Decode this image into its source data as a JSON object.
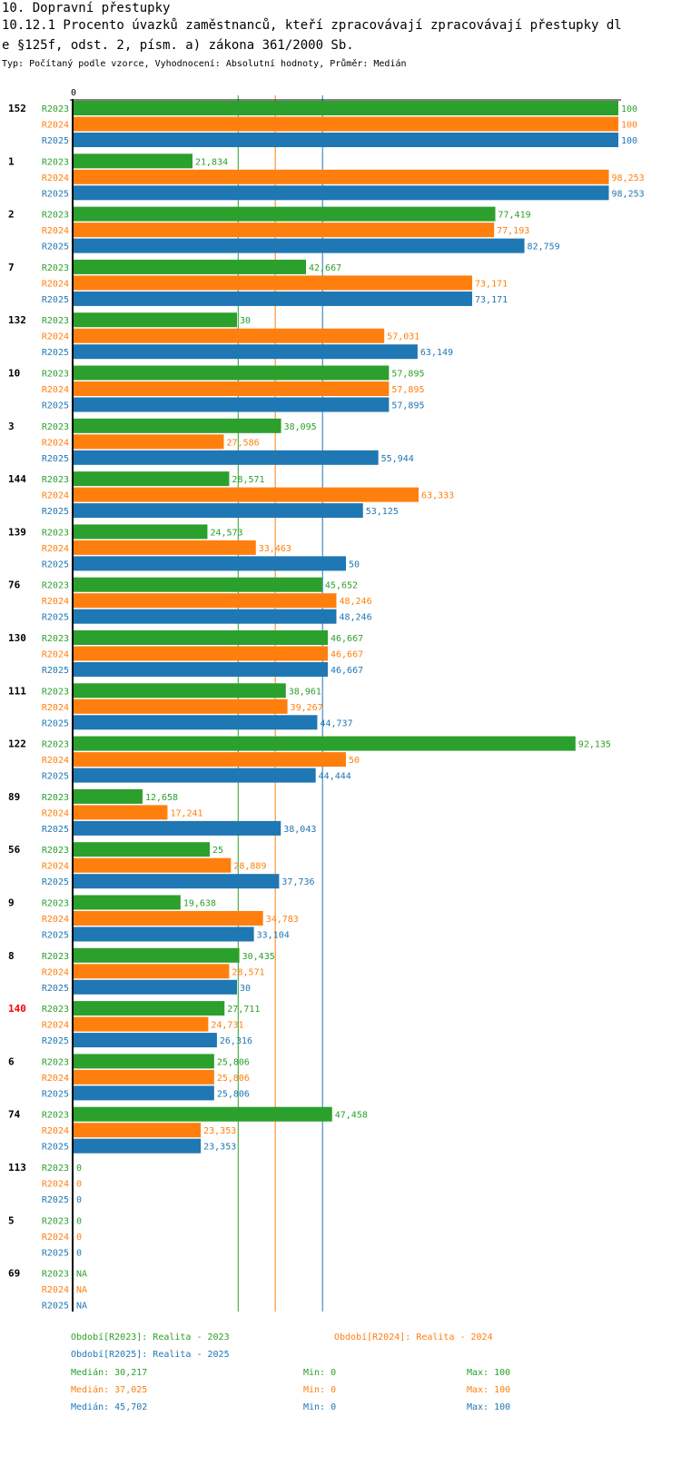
{
  "header": {
    "title_line1": "10. Dopravní přestupky",
    "title_line2": "10.12.1 Procento úvazků zaměstnanců, kteří zpracovávají zpracovávají přestupky dl",
    "title_line3": "e §125f, odst. 2, písm. a) zákona 361/2000 Sb.",
    "subtitle": "Typ: Počítaný podle vzorce, Vyhodnocení: Absolutní hodnoty, Průměr: Medián"
  },
  "colors": {
    "R2023": "#2ca02c",
    "R2024": "#ff7f0e",
    "R2025": "#1f77b4",
    "highlight": "#ff0000",
    "axis": "#000000"
  },
  "chart_data": {
    "type": "bar",
    "orientation": "horizontal",
    "title": "10.12.1 Procento úvazků zaměstnanců, kteří zpracovávají zpracovávají přestupky dle §125f, odst. 2, písm. a) zákona 361/2000 Sb.",
    "xlabel": "",
    "ylabel": "",
    "x_tick_labels": [
      "0"
    ],
    "xlim": [
      0,
      100
    ],
    "grid": false,
    "series_names": [
      "R2023",
      "R2024",
      "R2025"
    ],
    "categories": [
      "152",
      "1",
      "2",
      "7",
      "132",
      "10",
      "3",
      "144",
      "139",
      "76",
      "130",
      "111",
      "122",
      "89",
      "56",
      "9",
      "8",
      "140",
      "6",
      "74",
      "113",
      "5",
      "69"
    ],
    "highlighted_category": "140",
    "series": [
      {
        "name": "R2023",
        "values": [
          100,
          21.834,
          77.419,
          42.667,
          30,
          57.895,
          38.095,
          28.571,
          24.573,
          45.652,
          46.667,
          38.961,
          92.135,
          12.658,
          25,
          19.638,
          30.435,
          27.711,
          25.806,
          47.458,
          0,
          0,
          null
        ],
        "labels": [
          "100",
          "21,834",
          "77,419",
          "42,667",
          "30",
          "57,895",
          "38,095",
          "28,571",
          "24,573",
          "45,652",
          "46,667",
          "38,961",
          "92,135",
          "12,658",
          "25",
          "19,638",
          "30,435",
          "27,711",
          "25,806",
          "47,458",
          "0",
          "0",
          "NA"
        ]
      },
      {
        "name": "R2024",
        "values": [
          100,
          98.253,
          77.193,
          73.171,
          57.031,
          57.895,
          27.586,
          63.333,
          33.463,
          48.246,
          46.667,
          39.267,
          50,
          17.241,
          28.889,
          34.783,
          28.571,
          24.731,
          25.806,
          23.353,
          0,
          0,
          null
        ],
        "labels": [
          "100",
          "98,253",
          "77,193",
          "73,171",
          "57,031",
          "57,895",
          "27,586",
          "63,333",
          "33,463",
          "48,246",
          "46,667",
          "39,267",
          "50",
          "17,241",
          "28,889",
          "34,783",
          "28,571",
          "24,731",
          "25,806",
          "23,353",
          "0",
          "0",
          "NA"
        ]
      },
      {
        "name": "R2025",
        "values": [
          100,
          98.253,
          82.759,
          73.171,
          63.149,
          57.895,
          55.944,
          53.125,
          50,
          48.246,
          46.667,
          44.737,
          44.444,
          38.043,
          37.736,
          33.104,
          30,
          26.316,
          25.806,
          23.353,
          0,
          0,
          null
        ],
        "labels": [
          "100",
          "98,253",
          "82,759",
          "73,171",
          "63,149",
          "57,895",
          "55,944",
          "53,125",
          "50",
          "48,246",
          "46,667",
          "44,737",
          "44,444",
          "38,043",
          "37,736",
          "33,104",
          "30",
          "26,316",
          "25,806",
          "23,353",
          "0",
          "0",
          "NA"
        ]
      }
    ],
    "median_lines": [
      {
        "series": "R2023",
        "value": 30.217
      },
      {
        "series": "R2024",
        "value": 37.025
      },
      {
        "series": "R2025",
        "value": 45.702
      }
    ]
  },
  "legend": {
    "items": [
      {
        "series": "R2023",
        "text": "Období[R2023]: Realita - 2023"
      },
      {
        "series": "R2024",
        "text": "Období[R2024]: Realita - 2024"
      },
      {
        "series": "R2025",
        "text": "Období[R2025]: Realita - 2025"
      }
    ]
  },
  "stats": [
    {
      "series": "R2023",
      "median": "Medián: 30,217",
      "min": "Min: 0",
      "max": "Max: 100"
    },
    {
      "series": "R2024",
      "median": "Medián: 37,025",
      "min": "Min: 0",
      "max": "Max: 100"
    },
    {
      "series": "R2025",
      "median": "Medián: 45,702",
      "min": "Min: 0",
      "max": "Max: 100"
    }
  ]
}
